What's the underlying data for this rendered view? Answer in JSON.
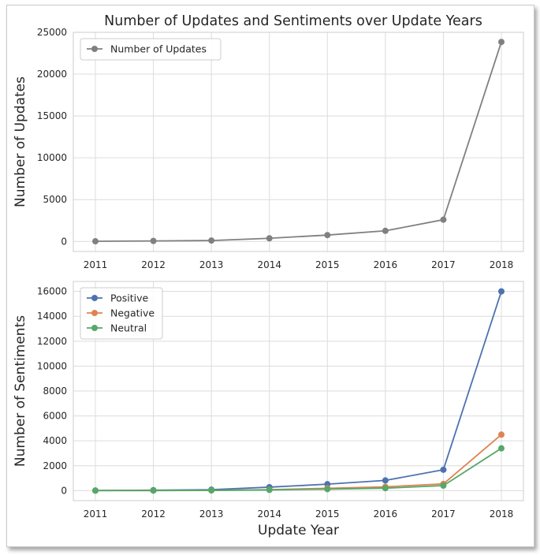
{
  "chart_data": [
    {
      "type": "line",
      "title": "Number of Updates and Sentiments over Update Years",
      "xlabel": "",
      "ylabel": "Number of Updates",
      "x": [
        2011,
        2012,
        2013,
        2014,
        2015,
        2016,
        2017,
        2018
      ],
      "ylim": [
        -1200,
        25000
      ],
      "yticks": [
        0,
        5000,
        10000,
        15000,
        20000,
        25000
      ],
      "grid": true,
      "legend": "top-left",
      "series": [
        {
          "name": "Number of Updates",
          "color": "#808080",
          "values": [
            20,
            60,
            110,
            380,
            760,
            1270,
            2600,
            23850
          ]
        }
      ]
    },
    {
      "type": "line",
      "title": "",
      "xlabel": "Update Year",
      "ylabel": "Number of Sentiments",
      "x": [
        2011,
        2012,
        2013,
        2014,
        2015,
        2016,
        2017,
        2018
      ],
      "ylim": [
        -800,
        16800
      ],
      "yticks": [
        0,
        2000,
        4000,
        6000,
        8000,
        10000,
        12000,
        14000,
        16000
      ],
      "grid": true,
      "legend": "top-left",
      "series": [
        {
          "name": "Positive",
          "color": "#4c72b0",
          "values": [
            10,
            40,
            80,
            280,
            520,
            820,
            1680,
            16000
          ]
        },
        {
          "name": "Negative",
          "color": "#dd8452",
          "values": [
            5,
            10,
            25,
            80,
            190,
            310,
            540,
            4500
          ]
        },
        {
          "name": "Neutral",
          "color": "#55a868",
          "values": [
            5,
            10,
            20,
            60,
            120,
            200,
            400,
            3400
          ]
        }
      ]
    }
  ]
}
